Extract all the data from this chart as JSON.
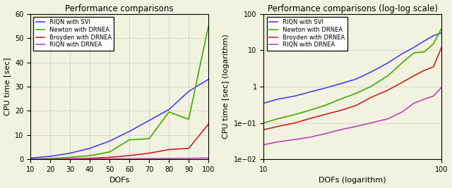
{
  "title_left": "Performance comparisons",
  "title_right": "Performance comparisons (log-log scale)",
  "xlabel_left": "DOFs",
  "xlabel_right": "DOFs (logarithm)",
  "ylabel_left": "CPU time [sec]",
  "ylabel_right": "CPU time [sec] (logarithm)",
  "legend_labels": [
    "RIQN with SVI",
    "Newton with DRNEA",
    "Broyden with DRNEA",
    "RIQN with DRNEA"
  ],
  "colors": [
    "#4444ee",
    "#44aa00",
    "#cc2222",
    "#bb44bb"
  ],
  "dofs_linear": [
    10,
    20,
    30,
    40,
    50,
    60,
    70,
    80,
    90,
    100
  ],
  "riqn_svi_linear": [
    0.5,
    1.2,
    2.5,
    4.5,
    7.5,
    11.5,
    16.0,
    20.5,
    28.0,
    33.0
  ],
  "newton_drnea_linear": [
    0.1,
    0.3,
    0.8,
    1.5,
    3.0,
    8.0,
    8.5,
    19.5,
    16.5,
    55.0
  ],
  "broyden_drnea_linear": [
    0.05,
    0.1,
    0.2,
    0.4,
    0.8,
    1.5,
    2.5,
    4.0,
    4.5,
    14.5
  ],
  "riqn_drnea_linear": [
    0.02,
    0.04,
    0.07,
    0.1,
    0.15,
    0.2,
    0.25,
    0.3,
    0.4,
    0.5
  ],
  "dofs_log": [
    10,
    12,
    15,
    18,
    22,
    27,
    33,
    40,
    50,
    60,
    70,
    80,
    90,
    100
  ],
  "riqn_svi_log": [
    0.35,
    0.45,
    0.55,
    0.7,
    0.9,
    1.2,
    1.6,
    2.5,
    4.5,
    8.0,
    12.0,
    18.0,
    25.0,
    30.0
  ],
  "newton_drnea_log": [
    0.1,
    0.13,
    0.17,
    0.22,
    0.3,
    0.45,
    0.65,
    1.0,
    2.0,
    4.5,
    8.5,
    9.0,
    15.0,
    40.0
  ],
  "broyden_drnea_log": [
    0.065,
    0.08,
    0.1,
    0.13,
    0.17,
    0.22,
    0.3,
    0.5,
    0.8,
    1.3,
    2.0,
    2.8,
    3.5,
    12.0
  ],
  "riqn_drnea_log": [
    0.025,
    0.03,
    0.035,
    0.04,
    0.05,
    0.065,
    0.08,
    0.1,
    0.13,
    0.2,
    0.35,
    0.45,
    0.55,
    0.95
  ],
  "ylim_left": [
    0,
    60
  ],
  "background_color": "#f2f2e0",
  "grid_color": "#888888"
}
